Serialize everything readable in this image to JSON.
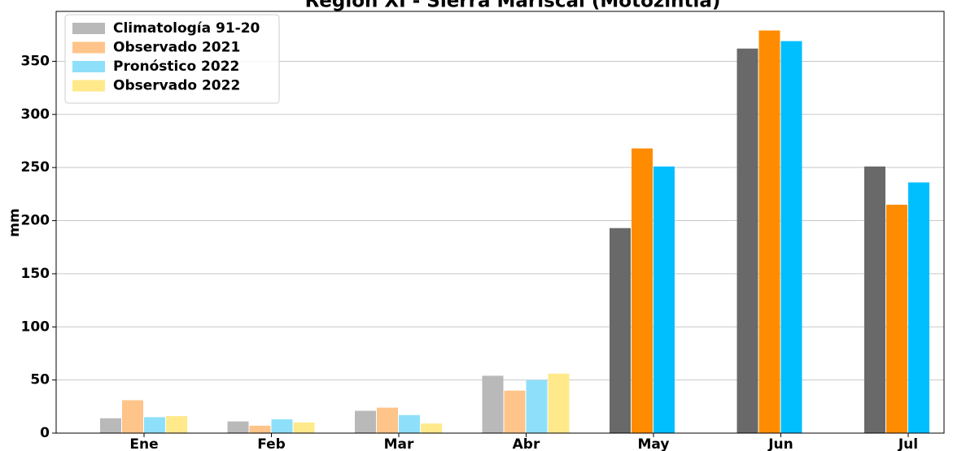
{
  "chart_data": {
    "type": "bar",
    "title": "Región XI - Sierra Mariscal (Motozintla)",
    "y_label": "mm",
    "categories": [
      "Ene",
      "Feb",
      "Mar",
      "Abr",
      "May",
      "Jun",
      "Jul"
    ],
    "series": [
      {
        "name": "Climatología 91-20",
        "color": "#b9b9b9",
        "bar_colors": [
          "#b9b9b9",
          "#b9b9b9",
          "#b9b9b9",
          "#b9b9b9",
          "#696969",
          "#696969",
          "#696969"
        ],
        "values": [
          14,
          11,
          21,
          54,
          193,
          362,
          251
        ]
      },
      {
        "name": "Observado 2021",
        "color": "#ffc48a",
        "bar_colors": [
          "#ffc48a",
          "#ffc48a",
          "#ffc48a",
          "#ffc48a",
          "#ff8c00",
          "#ff8c00",
          "#ff8c00"
        ],
        "values": [
          31,
          7,
          24,
          40,
          268,
          379,
          215
        ]
      },
      {
        "name": "Pronóstico 2022",
        "color": "#8ee0fa",
        "bar_colors": [
          "#8ee0fa",
          "#8ee0fa",
          "#8ee0fa",
          "#8ee0fa",
          "#00bfff",
          "#00bfff",
          "#00bfff"
        ],
        "values": [
          15,
          13,
          17,
          50,
          251,
          369,
          236
        ]
      },
      {
        "name": "Observado 2022",
        "color": "#ffe98a",
        "bar_colors": [
          "#ffe98a",
          "#ffe98a",
          "#ffe98a",
          "#ffe98a",
          "#ffe98a",
          "#ffe98a",
          "#ffe98a"
        ],
        "values": [
          16,
          10,
          9,
          56,
          null,
          null,
          null
        ]
      }
    ],
    "ylim": [
      0,
      397
    ],
    "yticks": [
      0,
      50,
      100,
      150,
      200,
      250,
      300,
      350
    ],
    "grid": true,
    "legend": "upper left"
  }
}
